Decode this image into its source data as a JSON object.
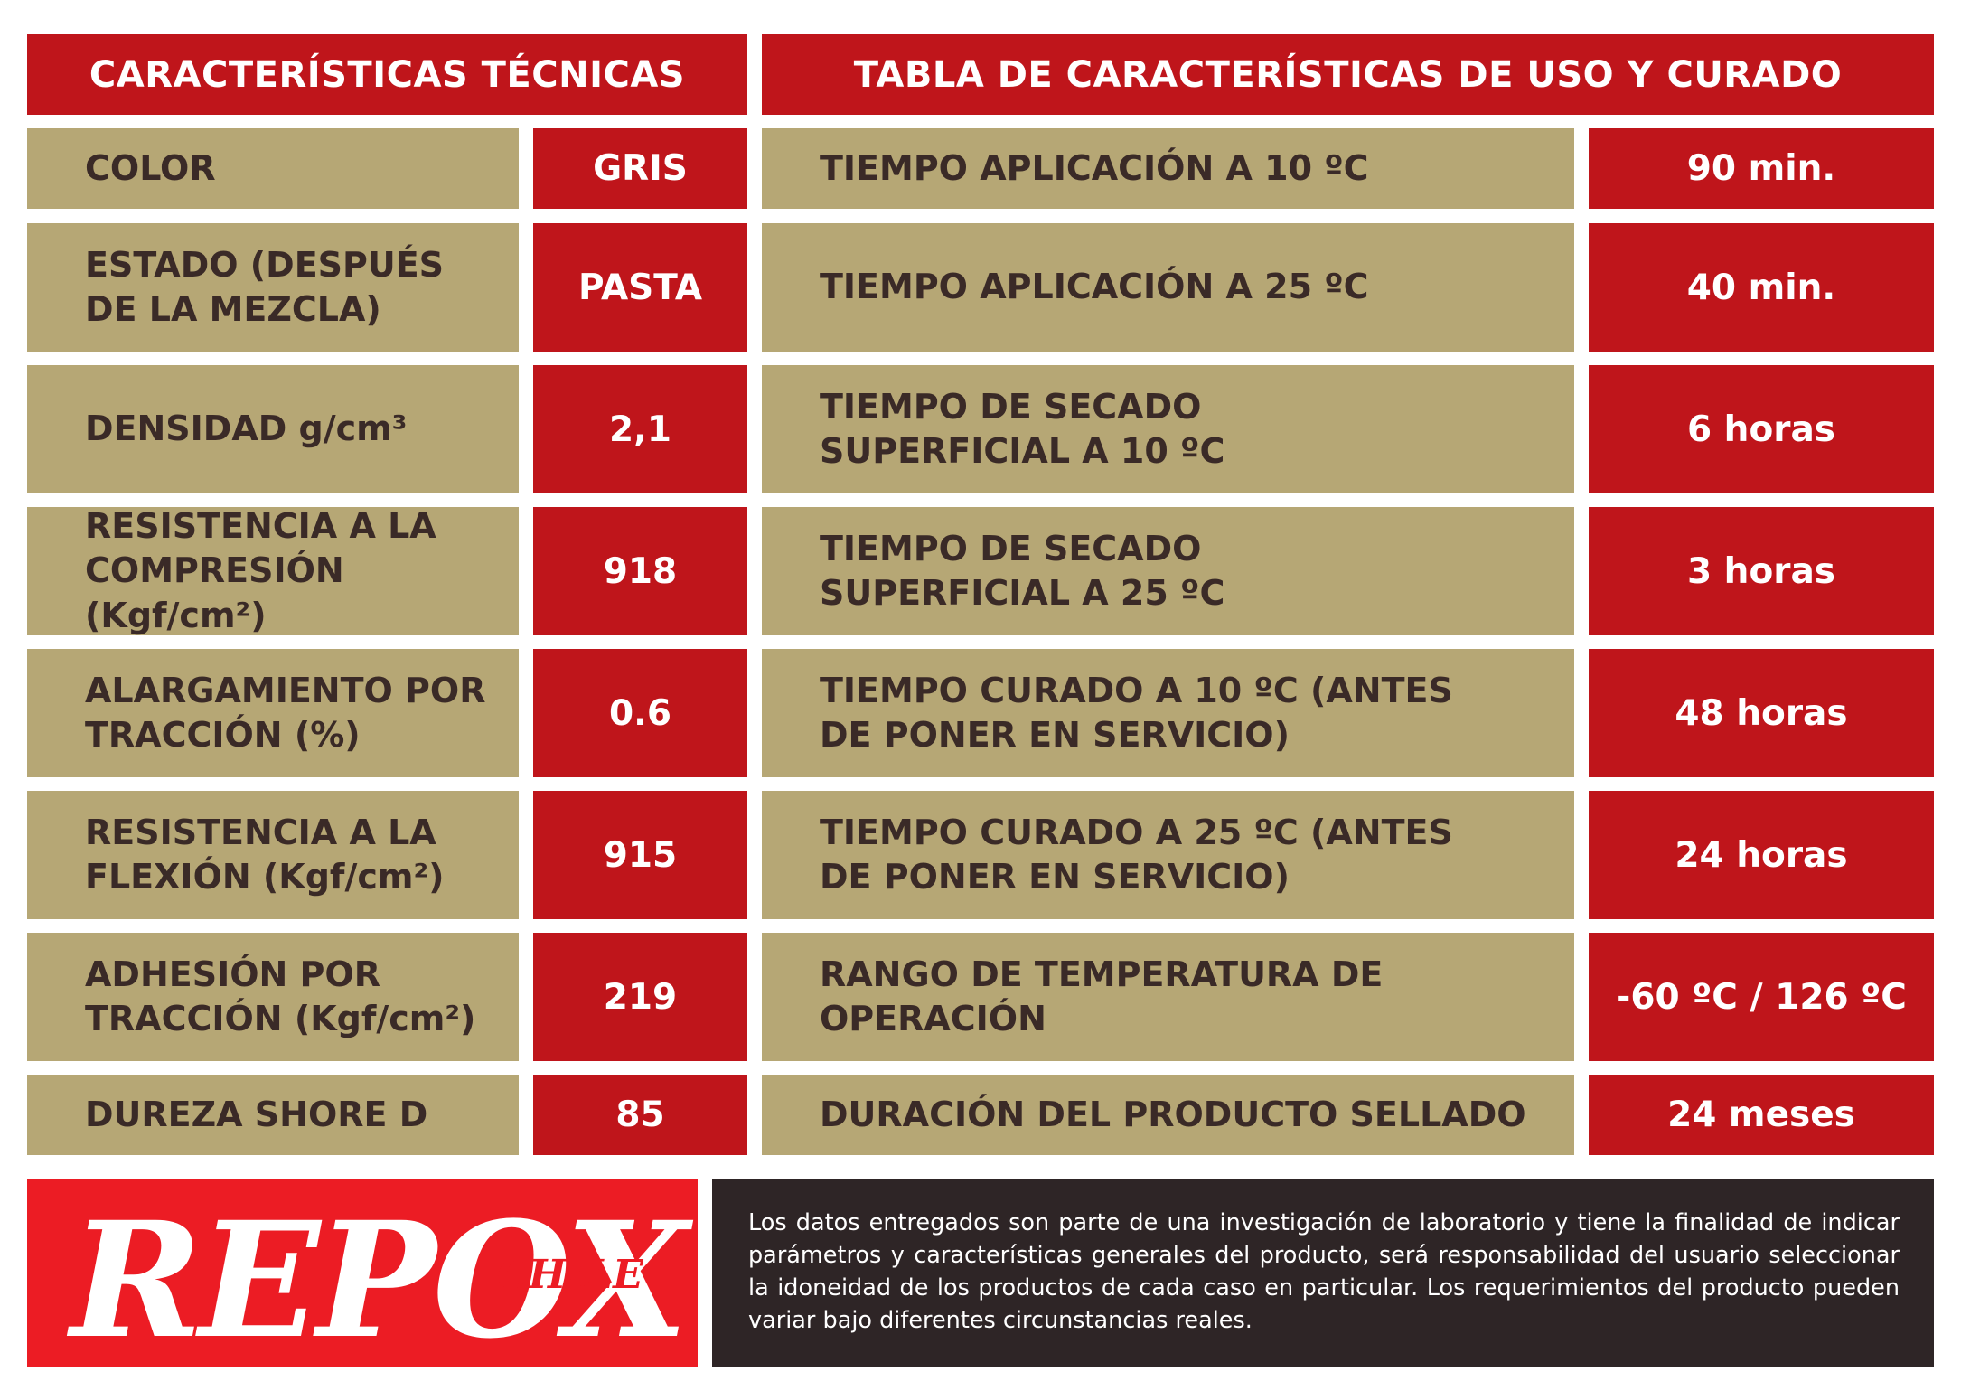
{
  "left_header": "CARACTERÍSTICAS TÉCNICAS",
  "right_header": "TABLA DE CARACTERÍSTICAS DE USO Y CURADO",
  "left_rows": [
    {
      "label": "COLOR",
      "value": "GRIS"
    },
    {
      "label": "ESTADO (DESPUÉS DE LA MEZCLA)",
      "value": "PASTA"
    },
    {
      "label": "DENSIDAD g/cm³",
      "value": "2,1"
    },
    {
      "label": "RESISTENCIA A LA COMPRESIÓN (Kgf/cm²)",
      "value": "918"
    },
    {
      "label": "ALARGAMIENTO POR TRACCIÓN (%)",
      "value": "0.6"
    },
    {
      "label": "RESISTENCIA A LA FLEXIÓN (Kgf/cm²)",
      "value": "915"
    },
    {
      "label": "ADHESIÓN POR TRACCIÓN (Kgf/cm²)",
      "value": "219"
    },
    {
      "label": "DUREZA SHORE D",
      "value": "85"
    }
  ],
  "right_rows": [
    {
      "label": "TIEMPO APLICACIÓN A 10 ºC",
      "value": "90 min."
    },
    {
      "label": "TIEMPO APLICACIÓN A 25 ºC",
      "value": "40 min."
    },
    {
      "label": "TIEMPO DE SECADO SUPERFICIAL A 10 ºC",
      "value": "6 horas"
    },
    {
      "label": "TIEMPO DE SECADO SUPERFICIAL A 25 ºC",
      "value": "3 horas"
    },
    {
      "label": "TIEMPO CURADO A 10 ºC (ANTES DE PONER EN SERVICIO)",
      "value": "48 horas"
    },
    {
      "label": "TIEMPO CURADO A 25 ºC (ANTES DE PONER EN SERVICIO)",
      "value": "24 horas"
    },
    {
      "label": "RANGO DE TEMPERATURA DE OPERACIÓN",
      "value": "-60 ºC / 126 ºC"
    },
    {
      "label": "DURACIÓN DEL PRODUCTO SELLADO",
      "value": "24 meses"
    }
  ],
  "logo": {
    "main": "REPOX",
    "sub": "CHILE"
  },
  "disclaimer": "Los datos entregados son parte de una investigación de laboratorio y tiene la finalidad de indicar parámetros y características generales del producto, será responsabilidad del usuario seleccionar la idoneidad de los productos de cada caso en particular. Los requerimientos del producto pueden variar bajo diferentes circunstancias reales.",
  "colors": {
    "red": "#bf151b",
    "tan": "#b6a775",
    "dark_text": "#3a2a27",
    "logo_red": "#ec1c24",
    "note_bg": "#2e2526"
  }
}
